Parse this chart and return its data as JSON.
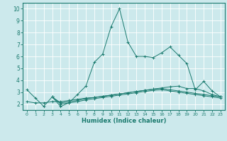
{
  "xlabel": "Humidex (Indice chaleur)",
  "bg_color": "#cce9ec",
  "grid_color": "#ffffff",
  "line_color": "#1a7a6e",
  "xlim": [
    -0.5,
    23.5
  ],
  "ylim": [
    1.5,
    10.5
  ],
  "xticks": [
    0,
    1,
    2,
    3,
    4,
    5,
    6,
    7,
    8,
    9,
    10,
    11,
    12,
    13,
    14,
    15,
    16,
    17,
    18,
    19,
    20,
    21,
    22,
    23
  ],
  "yticks": [
    2,
    3,
    4,
    5,
    6,
    7,
    8,
    9,
    10
  ],
  "series1_x": [
    0,
    1,
    2,
    3,
    4,
    5,
    6,
    7,
    8,
    9,
    10,
    11,
    12,
    13,
    14,
    15,
    16,
    17,
    18,
    19,
    20,
    21,
    22,
    23
  ],
  "series1_y": [
    3.2,
    2.5,
    1.8,
    2.6,
    1.8,
    2.1,
    2.8,
    3.5,
    5.5,
    6.2,
    8.5,
    10.0,
    7.2,
    6.0,
    6.0,
    5.9,
    6.3,
    6.8,
    6.1,
    5.4,
    3.2,
    3.9,
    3.1,
    2.6
  ],
  "series2_x": [
    0,
    1,
    2,
    3,
    4,
    5,
    6,
    7,
    8,
    9,
    10,
    11,
    12,
    13,
    14,
    15,
    16,
    17,
    18,
    19,
    20,
    21,
    22,
    23
  ],
  "series2_y": [
    2.2,
    2.1,
    2.1,
    2.2,
    2.2,
    2.3,
    2.4,
    2.5,
    2.55,
    2.65,
    2.75,
    2.85,
    2.95,
    3.05,
    3.15,
    3.25,
    3.35,
    3.45,
    3.5,
    3.3,
    3.3,
    3.1,
    2.8,
    2.6
  ],
  "series3_x": [
    3,
    4,
    5,
    6,
    7,
    8,
    9,
    10,
    11,
    12,
    13,
    14,
    15,
    16,
    17,
    18,
    19,
    20,
    21,
    22,
    23
  ],
  "series3_y": [
    2.6,
    2.1,
    2.2,
    2.3,
    2.45,
    2.55,
    2.65,
    2.75,
    2.85,
    2.95,
    3.05,
    3.15,
    3.25,
    3.3,
    3.2,
    3.1,
    3.0,
    2.9,
    2.8,
    2.7,
    2.6
  ],
  "series4_x": [
    3,
    4,
    5,
    6,
    7,
    8,
    9,
    10,
    11,
    12,
    13,
    14,
    15,
    16,
    17,
    18,
    19,
    20,
    21,
    22,
    23
  ],
  "series4_y": [
    2.6,
    2.0,
    2.1,
    2.2,
    2.35,
    2.45,
    2.55,
    2.65,
    2.75,
    2.85,
    2.95,
    3.05,
    3.15,
    3.2,
    3.1,
    3.0,
    2.9,
    2.8,
    2.7,
    2.6,
    2.5
  ]
}
